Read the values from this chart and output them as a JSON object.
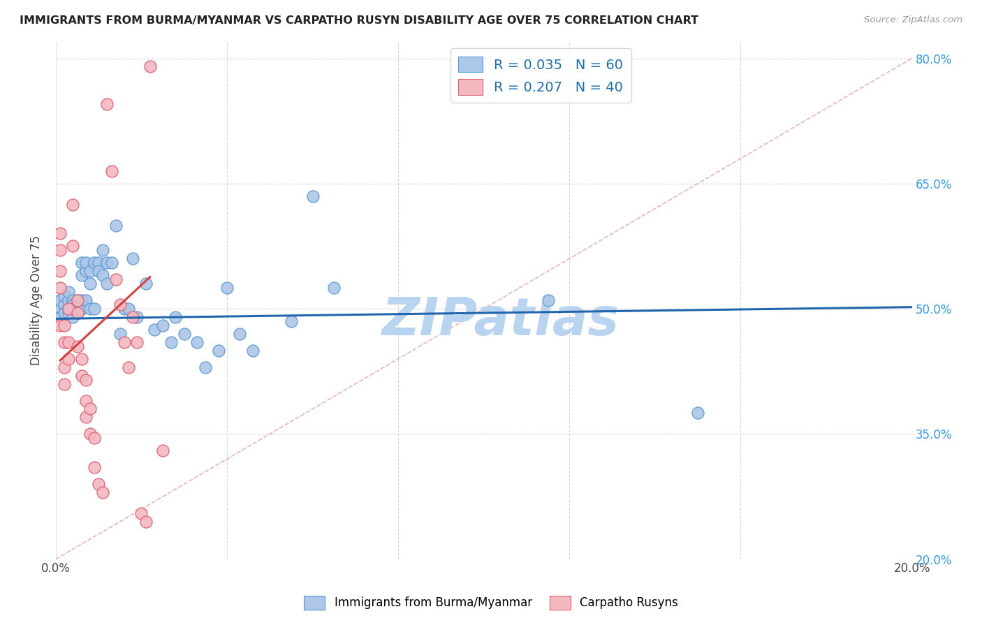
{
  "title": "IMMIGRANTS FROM BURMA/MYANMAR VS CARPATHO RUSYN DISABILITY AGE OVER 75 CORRELATION CHART",
  "source": "Source: ZipAtlas.com",
  "ylabel": "Disability Age Over 75",
  "xlim": [
    0.0,
    0.2
  ],
  "ylim": [
    0.2,
    0.82
  ],
  "blue_color": "#aec6e8",
  "blue_edge_color": "#5b9bd5",
  "pink_color": "#f4b8c1",
  "pink_edge_color": "#e06070",
  "blue_line_color": "#2166ac",
  "pink_line_color": "#d94040",
  "diag_line_color": "#e8a0a0",
  "R_blue": 0.035,
  "N_blue": 60,
  "R_pink": 0.207,
  "N_pink": 40,
  "legend_color": "#1a6faf",
  "watermark": "ZIPatlas",
  "watermark_color": "#b8d4f0",
  "background_color": "#ffffff",
  "grid_color": "#d8d8d8",
  "blue_scatter_x": [
    0.001,
    0.001,
    0.001,
    0.002,
    0.002,
    0.002,
    0.003,
    0.003,
    0.003,
    0.003,
    0.004,
    0.004,
    0.004,
    0.004,
    0.005,
    0.005,
    0.005,
    0.005,
    0.006,
    0.006,
    0.006,
    0.006,
    0.007,
    0.007,
    0.007,
    0.008,
    0.008,
    0.008,
    0.009,
    0.009,
    0.01,
    0.01,
    0.011,
    0.011,
    0.012,
    0.012,
    0.013,
    0.014,
    0.015,
    0.016,
    0.017,
    0.018,
    0.019,
    0.021,
    0.023,
    0.025,
    0.027,
    0.028,
    0.03,
    0.033,
    0.035,
    0.038,
    0.04,
    0.043,
    0.046,
    0.055,
    0.06,
    0.065,
    0.115,
    0.15
  ],
  "blue_scatter_y": [
    0.5,
    0.51,
    0.49,
    0.505,
    0.495,
    0.515,
    0.5,
    0.51,
    0.495,
    0.52,
    0.5,
    0.51,
    0.505,
    0.49,
    0.505,
    0.51,
    0.495,
    0.5,
    0.54,
    0.555,
    0.51,
    0.5,
    0.545,
    0.555,
    0.51,
    0.5,
    0.53,
    0.545,
    0.555,
    0.5,
    0.555,
    0.545,
    0.57,
    0.54,
    0.53,
    0.555,
    0.555,
    0.6,
    0.47,
    0.5,
    0.5,
    0.56,
    0.49,
    0.53,
    0.475,
    0.48,
    0.46,
    0.49,
    0.47,
    0.46,
    0.43,
    0.45,
    0.525,
    0.47,
    0.45,
    0.485,
    0.635,
    0.525,
    0.51,
    0.375
  ],
  "pink_scatter_x": [
    0.001,
    0.001,
    0.001,
    0.001,
    0.001,
    0.002,
    0.002,
    0.002,
    0.002,
    0.003,
    0.003,
    0.003,
    0.004,
    0.004,
    0.005,
    0.005,
    0.005,
    0.006,
    0.006,
    0.007,
    0.007,
    0.007,
    0.008,
    0.008,
    0.009,
    0.009,
    0.01,
    0.011,
    0.012,
    0.013,
    0.014,
    0.015,
    0.016,
    0.017,
    0.018,
    0.019,
    0.02,
    0.021,
    0.022,
    0.025
  ],
  "pink_scatter_y": [
    0.57,
    0.59,
    0.545,
    0.525,
    0.48,
    0.48,
    0.46,
    0.43,
    0.41,
    0.5,
    0.46,
    0.44,
    0.625,
    0.575,
    0.51,
    0.495,
    0.455,
    0.44,
    0.42,
    0.415,
    0.39,
    0.37,
    0.38,
    0.35,
    0.345,
    0.31,
    0.29,
    0.28,
    0.745,
    0.665,
    0.535,
    0.505,
    0.46,
    0.43,
    0.49,
    0.46,
    0.255,
    0.245,
    0.79,
    0.33
  ],
  "blue_line_x": [
    0.0,
    0.2
  ],
  "blue_line_y": [
    0.488,
    0.502
  ],
  "pink_line_x": [
    0.001,
    0.022
  ],
  "pink_line_y": [
    0.438,
    0.538
  ]
}
